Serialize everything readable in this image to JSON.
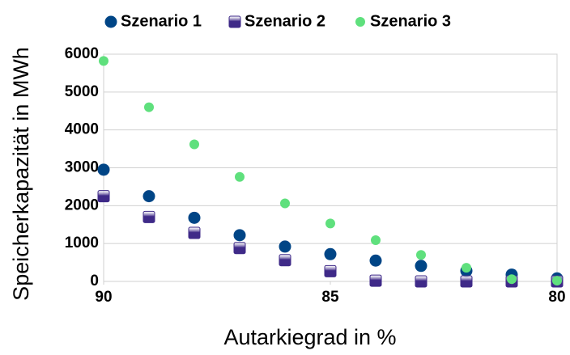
{
  "chart_data": {
    "type": "scatter",
    "x_label": "Autarkiegrad in %",
    "y_label": "Speicherkapazität in MWh",
    "x": [
      90,
      89,
      88,
      87,
      86,
      85,
      84,
      83,
      82,
      81,
      80
    ],
    "xlim": [
      90,
      80
    ],
    "xticks": [
      90,
      85,
      80
    ],
    "ylim": [
      0,
      6000
    ],
    "yticks": [
      0,
      1000,
      2000,
      3000,
      4000,
      5000,
      6000
    ],
    "grid": true,
    "legend": "top",
    "series": [
      {
        "name": "Szenario 1",
        "color": "#004586",
        "marker": "circle",
        "values": [
          2950,
          2250,
          1680,
          1220,
          920,
          720,
          550,
          410,
          280,
          180,
          80
        ]
      },
      {
        "name": "Szenario 2",
        "color": "#3f2a88",
        "marker": "square",
        "values": [
          2250,
          1700,
          1280,
          880,
          560,
          270,
          20,
          0,
          0,
          0,
          0
        ]
      },
      {
        "name": "Szenario 3",
        "color": "#5fe07d",
        "marker": "circle",
        "values": [
          5820,
          4600,
          3620,
          2760,
          2060,
          1530,
          1090,
          700,
          360,
          60,
          20
        ]
      }
    ]
  }
}
